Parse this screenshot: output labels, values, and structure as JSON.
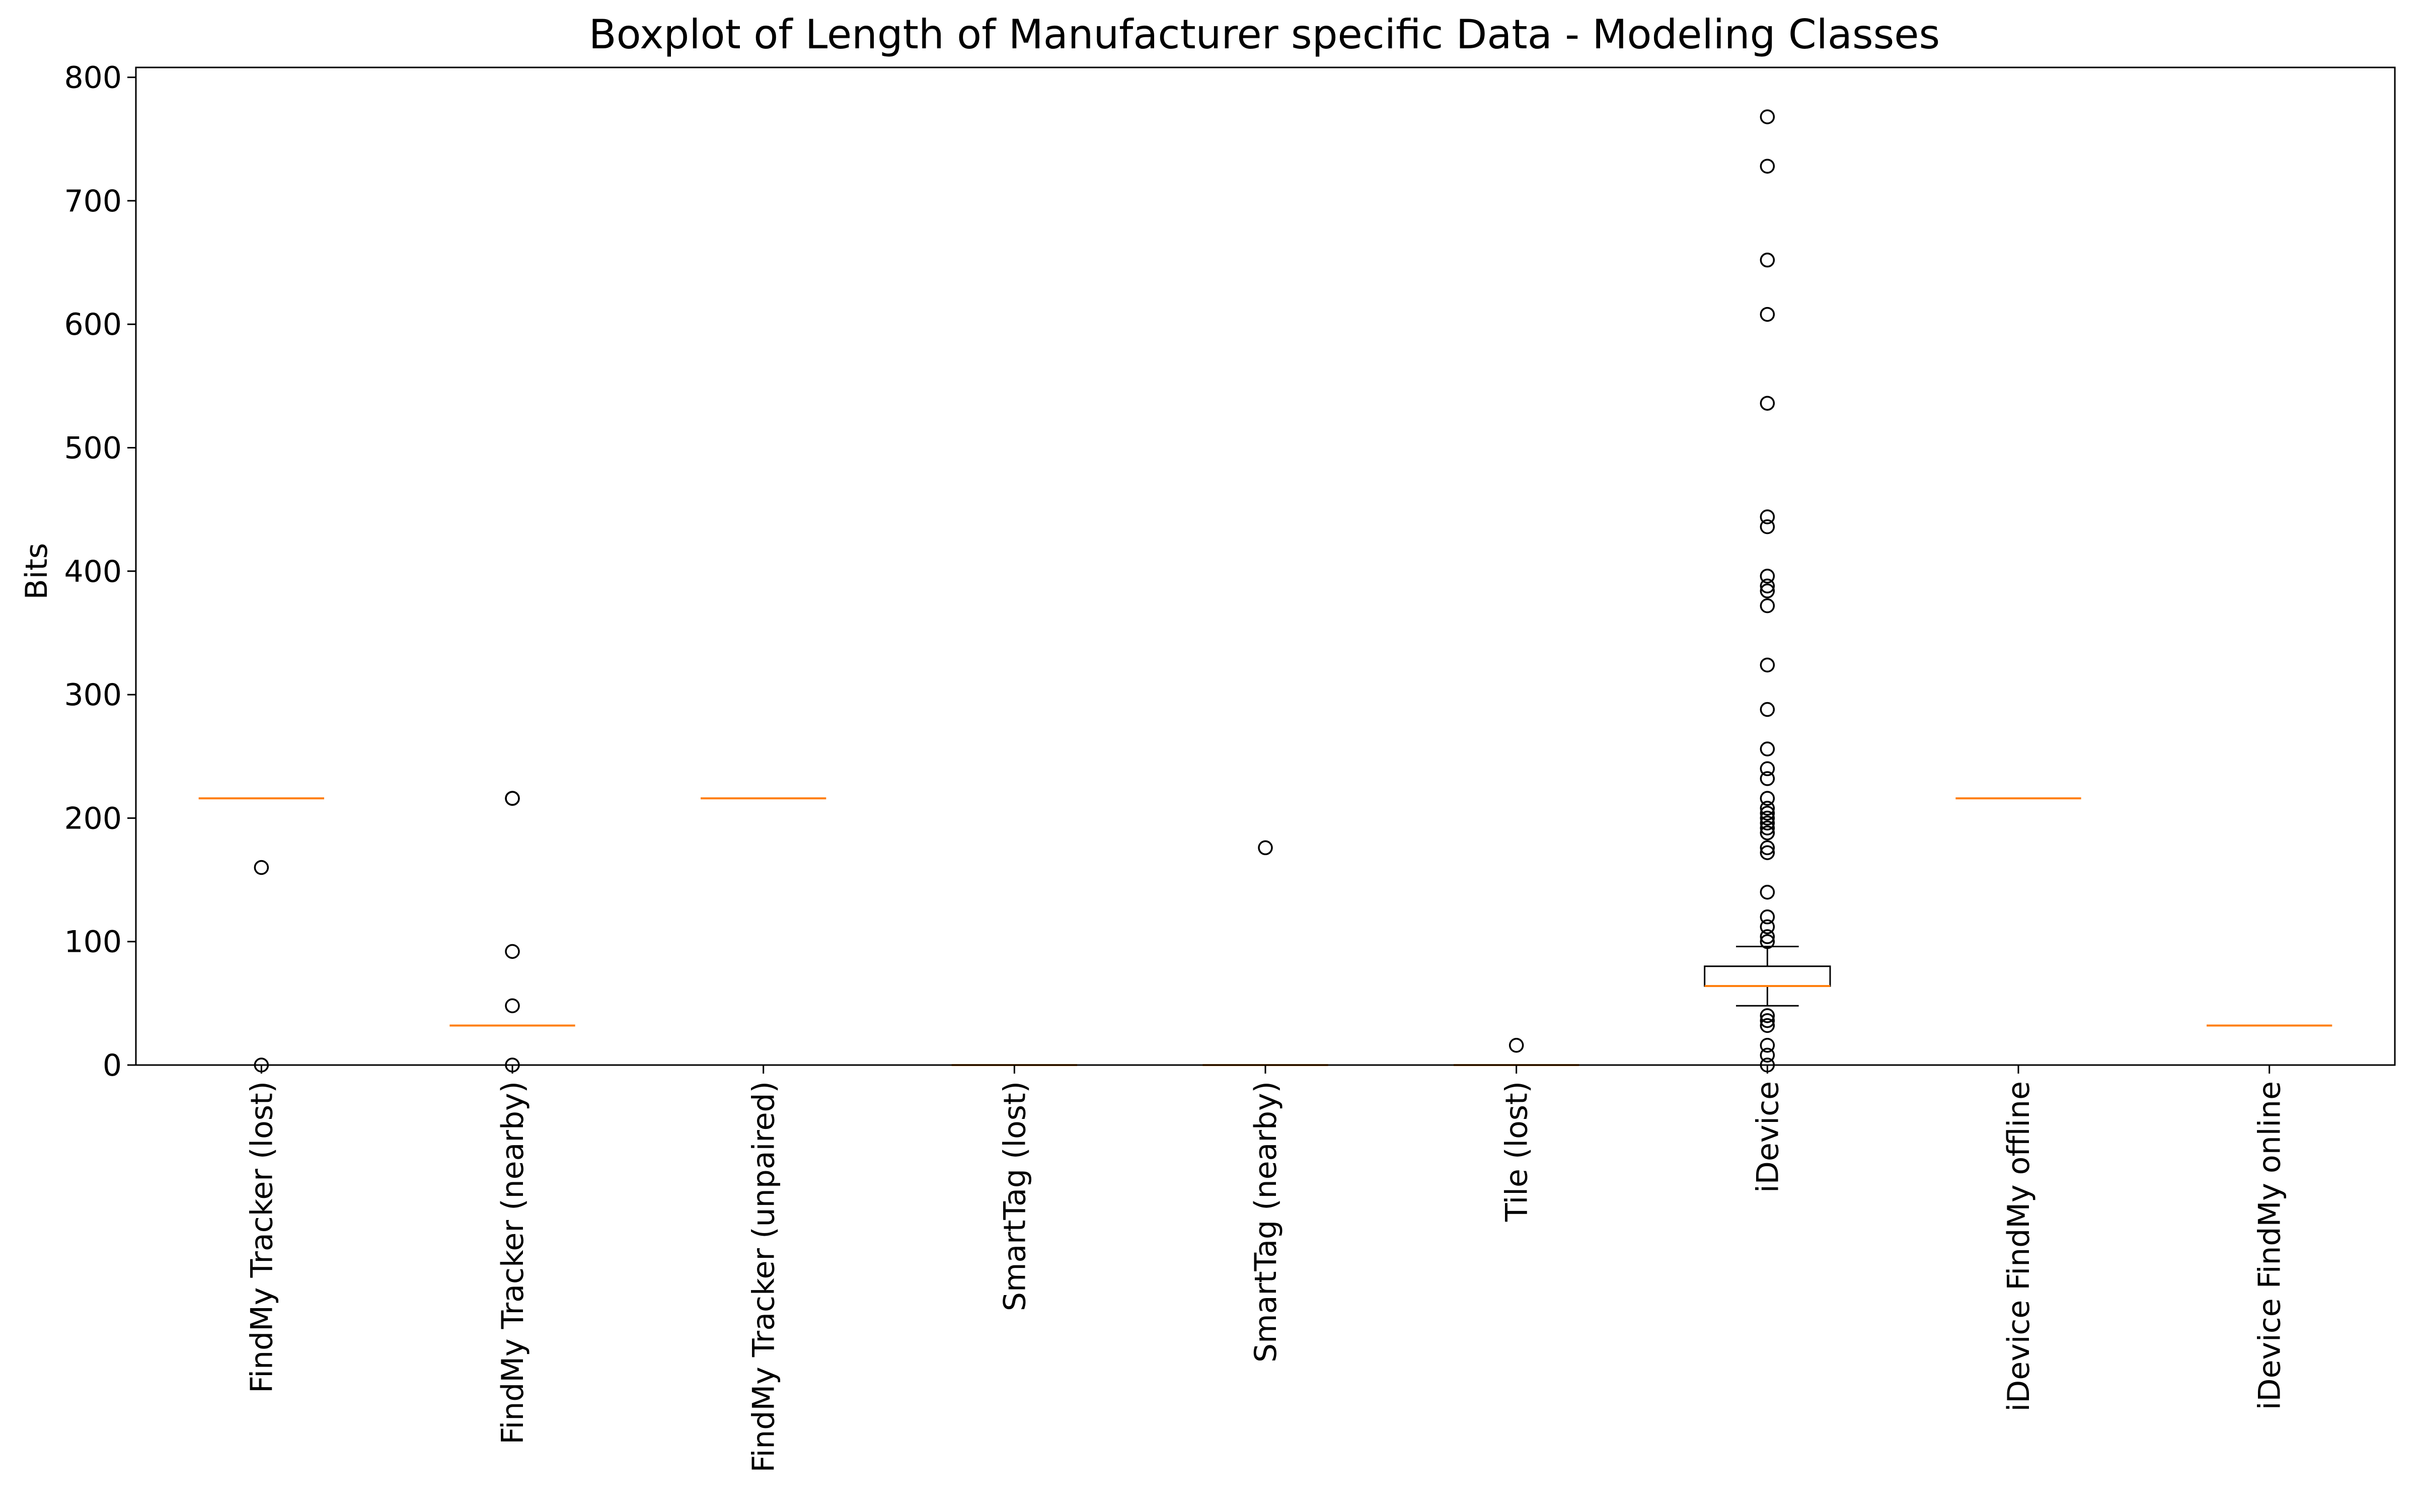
{
  "chart_data": {
    "type": "box",
    "title": "Boxplot of Length of Manufacturer specific Data - Modeling Classes",
    "xlabel": "",
    "ylabel": "Bits",
    "ylim": [
      0,
      808
    ],
    "yticks": [
      0,
      100,
      200,
      300,
      400,
      500,
      600,
      700,
      800
    ],
    "grid": false,
    "colors": {
      "box": "#000000",
      "median": "#ff7f0e",
      "flier": "#000000",
      "background": "#ffffff"
    },
    "categories": [
      "FindMy Tracker (lost)",
      "FindMy Tracker (nearby)",
      "FindMy Tracker (unpaired)",
      "SmartTag (lost)",
      "SmartTag (nearby)",
      "Tile (lost)",
      "iDevice",
      "iDevice FindMy offline",
      "iDevice FindMy online"
    ],
    "boxes": [
      {
        "label": "FindMy Tracker (lost)",
        "whisker_low": 216,
        "q1": 216,
        "median": 216,
        "q3": 216,
        "whisker_high": 216,
        "fliers": [
          160,
          0
        ]
      },
      {
        "label": "FindMy Tracker (nearby)",
        "whisker_low": 32,
        "q1": 32,
        "median": 32,
        "q3": 32,
        "whisker_high": 32,
        "fliers": [
          216,
          216,
          92,
          48,
          0
        ]
      },
      {
        "label": "FindMy Tracker (unpaired)",
        "whisker_low": 216,
        "q1": 216,
        "median": 216,
        "q3": 216,
        "whisker_high": 216,
        "fliers": []
      },
      {
        "label": "SmartTag (lost)",
        "whisker_low": 0,
        "q1": 0,
        "median": 0,
        "q3": 0,
        "whisker_high": 0,
        "fliers": []
      },
      {
        "label": "SmartTag (nearby)",
        "whisker_low": 0,
        "q1": 0,
        "median": 0,
        "q3": 0,
        "whisker_high": 0,
        "fliers": [
          176
        ]
      },
      {
        "label": "Tile (lost)",
        "whisker_low": 0,
        "q1": 0,
        "median": 0,
        "q3": 0,
        "whisker_high": 0,
        "fliers": [
          16
        ]
      },
      {
        "label": "iDevice",
        "whisker_low": 48,
        "q1": 64,
        "median": 64,
        "q3": 80,
        "whisker_high": 96,
        "fliers": [
          768,
          728,
          652,
          608,
          536,
          444,
          436,
          396,
          388,
          384,
          372,
          324,
          288,
          256,
          240,
          232,
          216,
          208,
          204,
          200,
          196,
          192,
          188,
          176,
          172,
          140,
          120,
          112,
          104,
          100,
          40,
          36,
          32,
          16,
          8,
          0
        ]
      },
      {
        "label": "iDevice FindMy offline",
        "whisker_low": 216,
        "q1": 216,
        "median": 216,
        "q3": 216,
        "whisker_high": 216,
        "fliers": []
      },
      {
        "label": "iDevice FindMy online",
        "whisker_low": 32,
        "q1": 32,
        "median": 32,
        "q3": 32,
        "whisker_high": 32,
        "fliers": []
      }
    ]
  }
}
